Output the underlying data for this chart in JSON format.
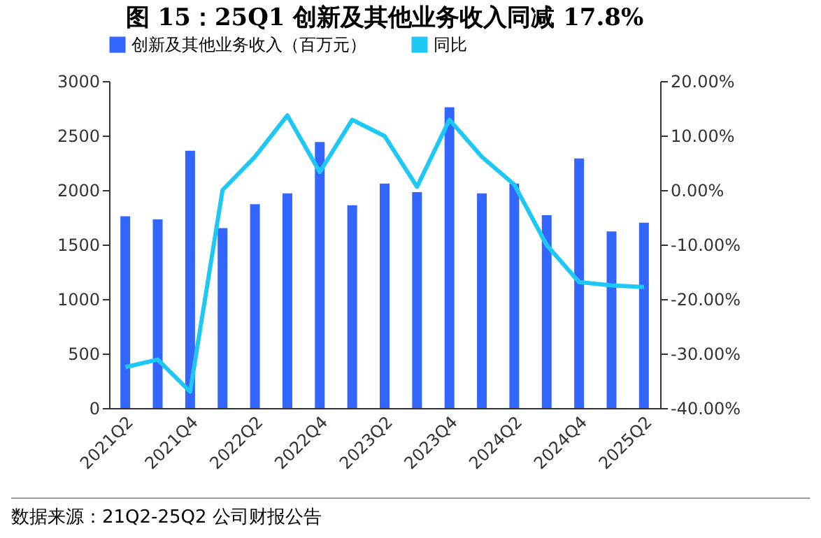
{
  "chart_data": {
    "type": "bar",
    "title": "图 15：25Q1 创新及其他业务收入同减 17.8%",
    "categories": [
      "2021Q2",
      null,
      "2021Q4",
      null,
      "2022Q2",
      null,
      "2022Q4",
      null,
      "2023Q2",
      null,
      "2023Q4",
      null,
      "2024Q2",
      null,
      "2024Q4",
      null,
      "2025Q2"
    ],
    "series": [
      {
        "name": "创新及其他业务收入（百万元）",
        "color": "#3366ff",
        "values": [
          1760,
          1730,
          2360,
          1650,
          1870,
          1970,
          2440,
          1860,
          2060,
          1980,
          2760,
          1970,
          2060,
          1770,
          2290,
          1620,
          1700
        ]
      },
      {
        "name": "同比",
        "type": "line",
        "axis": "y2",
        "color": "#1ec8f5",
        "values": [
          -32.5,
          -31.1,
          -37.0,
          0.0,
          6.1,
          13.7,
          3.3,
          12.9,
          9.9,
          0.6,
          12.9,
          6.1,
          1.0,
          -10.1,
          -16.9,
          -17.5,
          -17.8
        ]
      }
    ],
    "ylim": [
      0,
      3000
    ],
    "yticks": [
      0,
      500,
      1000,
      1500,
      2000,
      2500,
      3000
    ],
    "y2lim": [
      -40,
      20
    ],
    "y2ticks": [
      {
        "value": -40,
        "label": "-40.00%"
      },
      {
        "value": -30,
        "label": "-30.00%"
      },
      {
        "value": -20,
        "label": "-20.00%"
      },
      {
        "value": -10,
        "label": "-10.00%"
      },
      {
        "value": 0,
        "label": "0.00%"
      },
      {
        "value": 10,
        "label": "10.00%"
      },
      {
        "value": 20,
        "label": "20.00%"
      }
    ],
    "legend": "top",
    "annotations": [
      "数据来源：21Q2-25Q2 公司财报公告"
    ]
  }
}
